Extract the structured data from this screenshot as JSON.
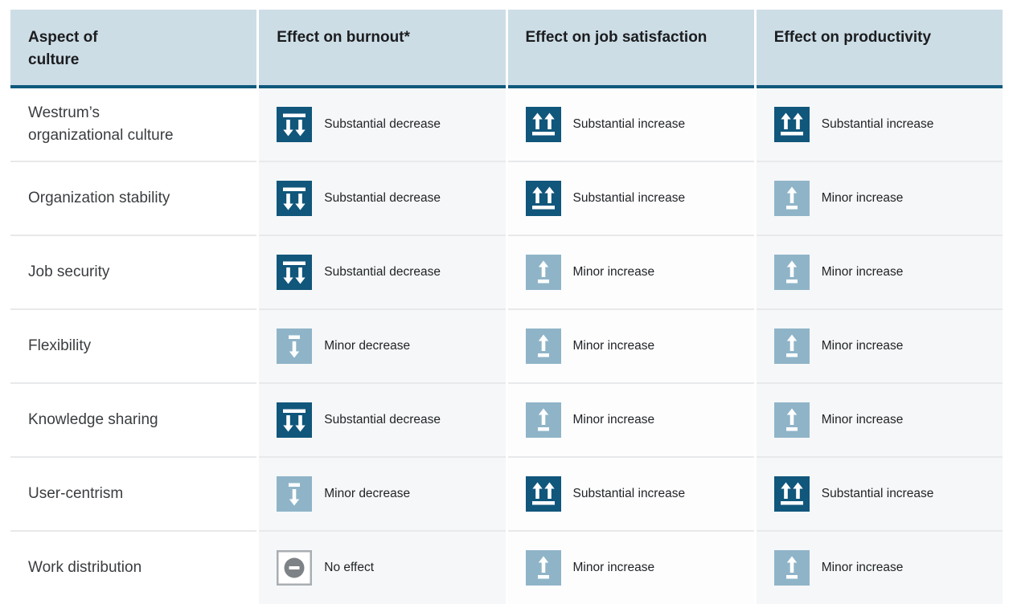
{
  "colors": {
    "header_bg": "#cddde6",
    "accent_line": "#0e587c",
    "substantial": "#11567b",
    "minor": "#8fb4c8",
    "no_effect": "#7d8287",
    "no_effect_border": "#a9aeb3",
    "col_stripe": "#f5f7f8",
    "row_divider": "#e7e9ea"
  },
  "table": {
    "headers": [
      "Aspect of culture",
      "Effect on burnout*",
      "Effect on job satisfaction",
      "Effect on productivity"
    ],
    "icon_legend": {
      "substantial-decrease-icon": "dark blue square, two down arrows under a bar",
      "substantial-increase-icon": "dark blue square, two up arrows over a bar",
      "minor-decrease-icon": "light blue square, one down arrow under a short bar",
      "minor-increase-icon": "light blue square, one up arrow over a short bar",
      "no-effect-icon": "outlined white square, gray circle with minus"
    },
    "rows": [
      {
        "aspect": "Westrum’s organizational culture",
        "effects": [
          {
            "icon": "substantial-decrease",
            "label": "Substantial decrease"
          },
          {
            "icon": "substantial-increase",
            "label": "Substantial increase"
          },
          {
            "icon": "substantial-increase",
            "label": "Substantial increase"
          }
        ]
      },
      {
        "aspect": "Organization stability",
        "effects": [
          {
            "icon": "substantial-decrease",
            "label": "Substantial decrease"
          },
          {
            "icon": "substantial-increase",
            "label": "Substantial increase"
          },
          {
            "icon": "minor-increase",
            "label": "Minor increase"
          }
        ]
      },
      {
        "aspect": "Job security",
        "effects": [
          {
            "icon": "substantial-decrease",
            "label": "Substantial decrease"
          },
          {
            "icon": "minor-increase",
            "label": "Minor increase"
          },
          {
            "icon": "minor-increase",
            "label": "Minor increase"
          }
        ]
      },
      {
        "aspect": "Flexibility",
        "effects": [
          {
            "icon": "minor-decrease",
            "label": "Minor decrease"
          },
          {
            "icon": "minor-increase",
            "label": "Minor increase"
          },
          {
            "icon": "minor-increase",
            "label": "Minor increase"
          }
        ]
      },
      {
        "aspect": "Knowledge sharing",
        "effects": [
          {
            "icon": "substantial-decrease",
            "label": "Substantial decrease"
          },
          {
            "icon": "minor-increase",
            "label": "Minor increase"
          },
          {
            "icon": "minor-increase",
            "label": "Minor increase"
          }
        ]
      },
      {
        "aspect": "User-centrism",
        "effects": [
          {
            "icon": "minor-decrease",
            "label": "Minor decrease"
          },
          {
            "icon": "substantial-increase",
            "label": "Substantial increase"
          },
          {
            "icon": "substantial-increase",
            "label": "Substantial increase"
          }
        ]
      },
      {
        "aspect": "Work distribution",
        "effects": [
          {
            "icon": "no-effect",
            "label": "No effect"
          },
          {
            "icon": "minor-increase",
            "label": "Minor increase"
          },
          {
            "icon": "minor-increase",
            "label": "Minor increase"
          }
        ]
      }
    ]
  }
}
